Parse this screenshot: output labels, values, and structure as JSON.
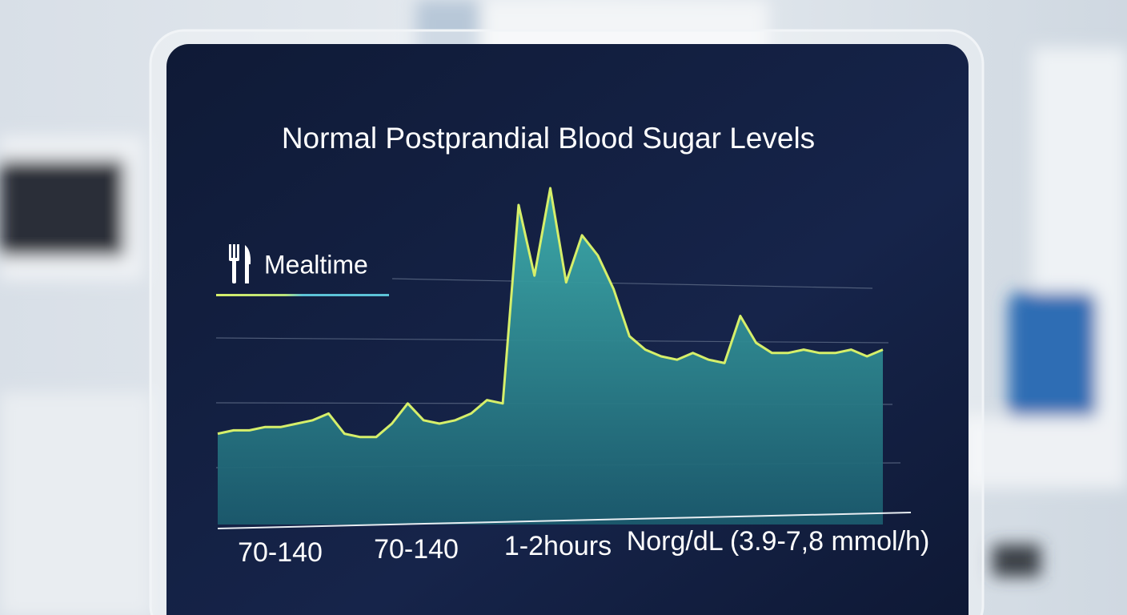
{
  "chart_data": {
    "type": "area",
    "title": "Normal Postprandial Blood Sugar Levels",
    "legend": {
      "label": "Mealtime"
    },
    "x_labels": [
      "70-140",
      "70-140",
      "1-2hours",
      "Norg/dL (3.9-7,8 mmol/h)"
    ],
    "values": [
      27,
      28,
      28,
      29,
      29,
      30,
      31,
      33,
      27,
      26,
      26,
      30,
      36,
      31,
      30,
      31,
      33,
      37,
      36,
      95,
      74,
      100,
      72,
      86,
      80,
      70,
      56,
      52,
      50,
      49,
      51,
      49,
      48,
      62,
      54,
      51,
      51,
      52,
      51,
      51,
      52,
      50,
      52
    ],
    "ylim": [
      0,
      100
    ],
    "color": "#d6ef6a",
    "fill": "#3a9fa6",
    "grid": true
  }
}
